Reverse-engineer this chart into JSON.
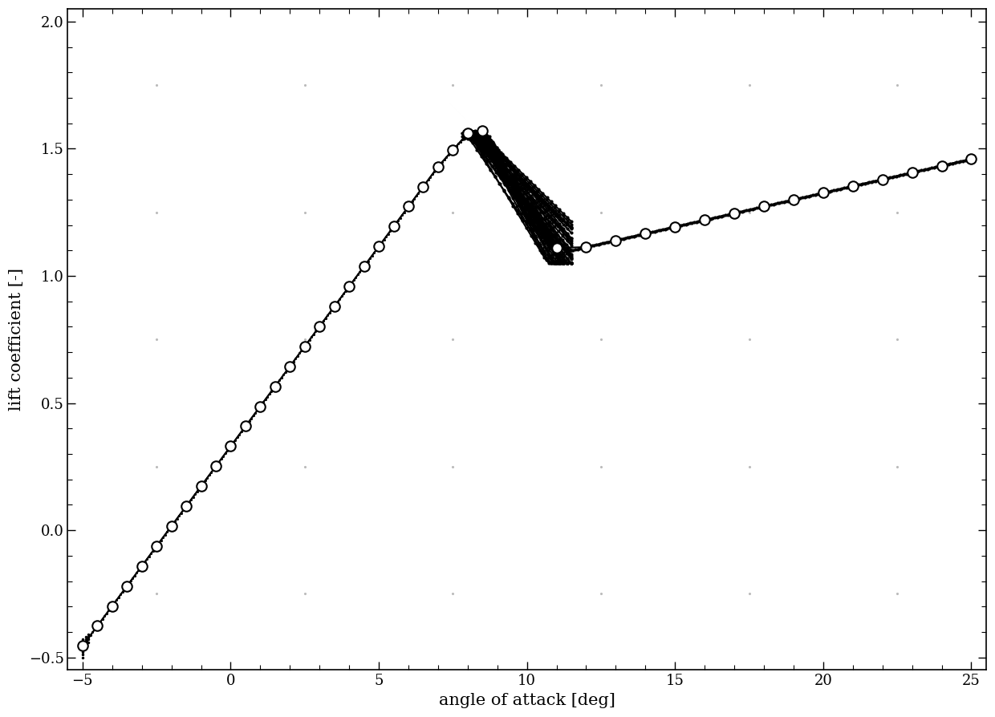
{
  "xlabel": "angle of attack [deg]",
  "ylabel": "lift coefficient [-]",
  "xlim": [
    -5.5,
    25.5
  ],
  "ylim": [
    -0.55,
    2.05
  ],
  "xticks": [
    -5,
    0,
    5,
    10,
    15,
    20,
    25
  ],
  "yticks": [
    -0.5,
    0,
    0.5,
    1.0,
    1.5,
    2.0
  ],
  "background_color": "#ffffff",
  "figsize": [
    12.4,
    8.94
  ],
  "dpi": 100
}
